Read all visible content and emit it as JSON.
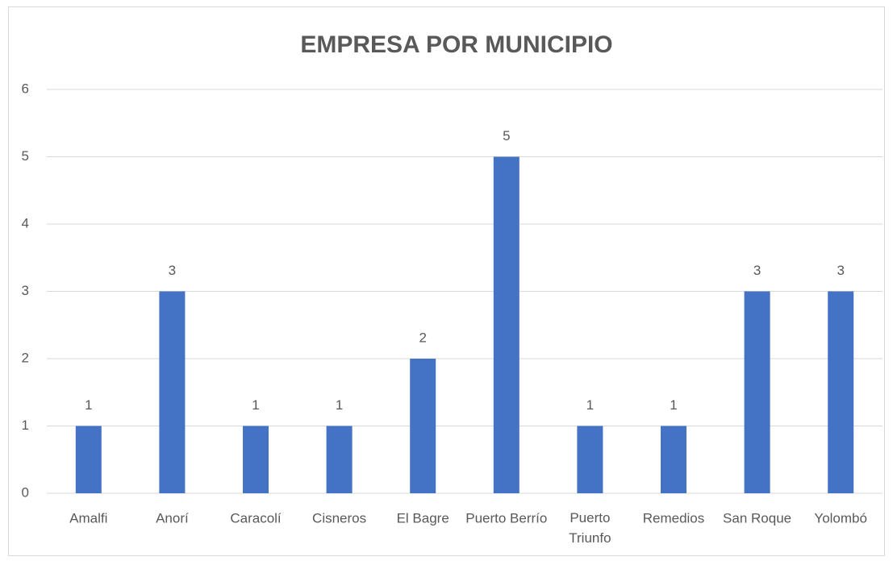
{
  "chart_data": {
    "type": "bar",
    "title": "EMPRESA POR MUNICIPIO",
    "categories": [
      "Amalfi",
      "Anorí",
      "Caracolí",
      "Cisneros",
      "El Bagre",
      "Puerto Berrío",
      "Puerto Triunfo",
      "Remedios",
      "San Roque",
      "Yolombó"
    ],
    "values": [
      1,
      3,
      1,
      1,
      2,
      5,
      1,
      1,
      3,
      3
    ],
    "color": "#4472c4",
    "ylim": [
      0,
      6
    ],
    "yticks": [
      0,
      1,
      2,
      3,
      4,
      5,
      6
    ],
    "grid": true
  }
}
